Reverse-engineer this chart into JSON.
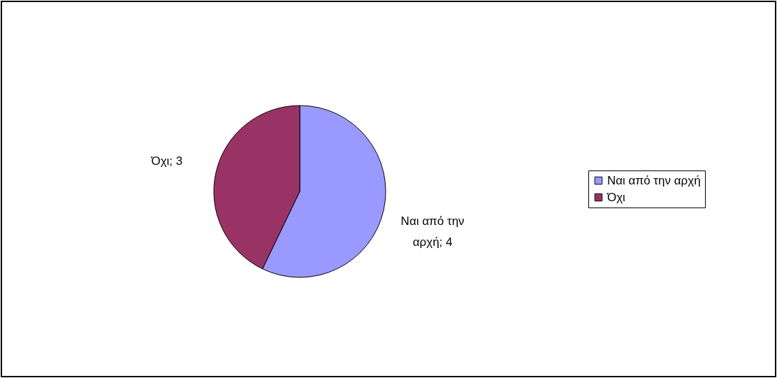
{
  "chart_data": {
    "type": "pie",
    "categories": [
      "Ναι από την αρχή",
      "Όχι"
    ],
    "values": [
      4,
      3
    ],
    "colors": [
      "#9999ff",
      "#993366"
    ],
    "value_labels": [
      "Ναι από την αρχή; 4",
      "Όχι; 3"
    ],
    "legend": "right"
  }
}
